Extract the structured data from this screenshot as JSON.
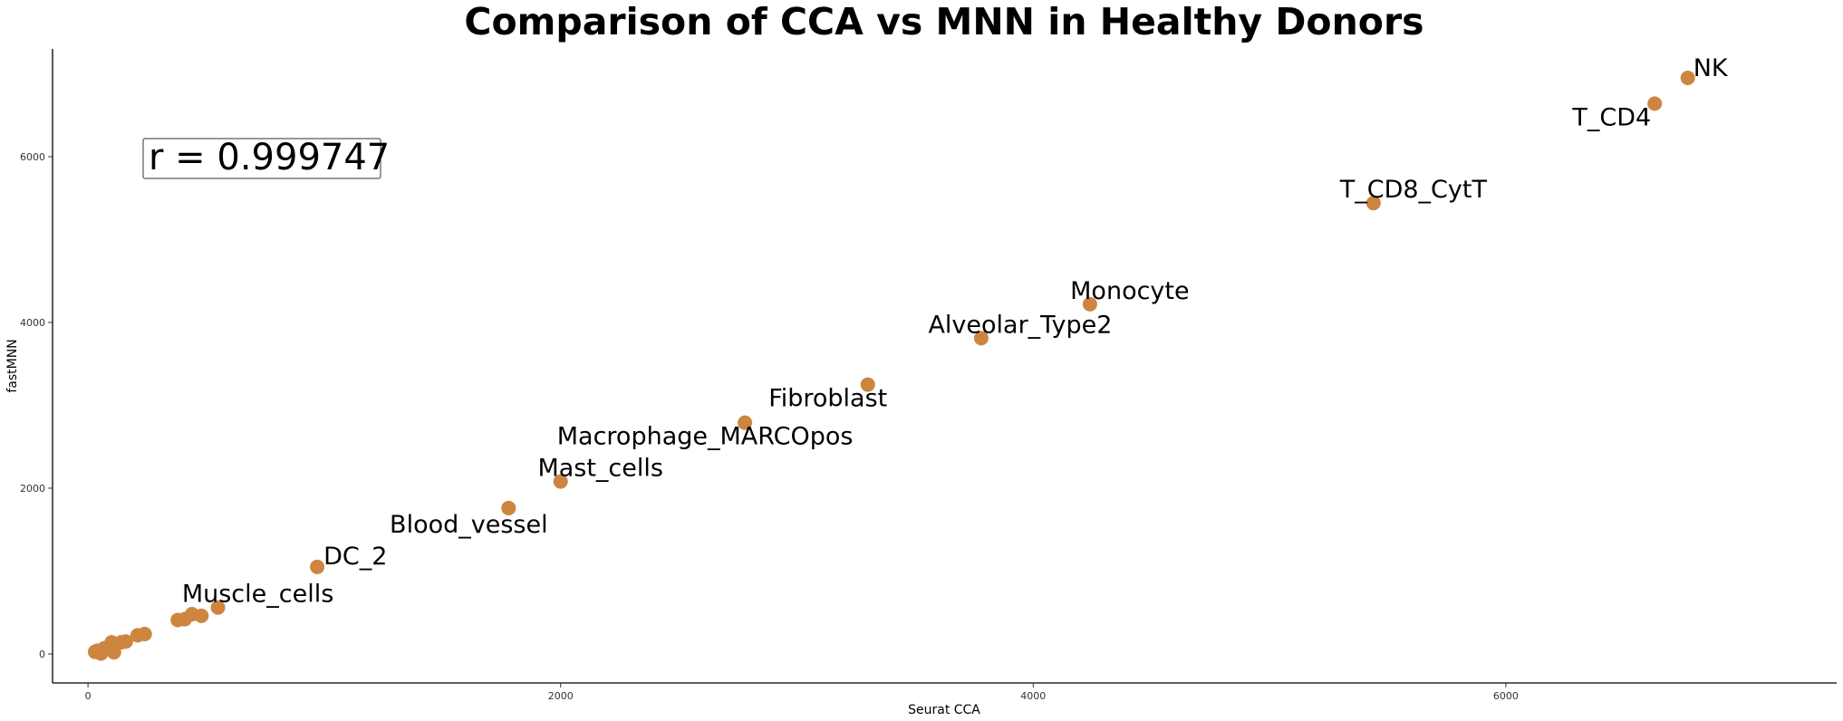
{
  "chart_data": {
    "type": "scatter",
    "title": "Comparison of CCA vs MNN in Healthy Donors",
    "xlabel": "Seurat CCA",
    "ylabel": "fastMNN",
    "xlim": [
      -150,
      7400
    ],
    "ylim": [
      -350,
      7300
    ],
    "xticks": [
      0,
      2000,
      4000,
      6000
    ],
    "yticks": [
      0,
      2000,
      4000,
      6000
    ],
    "grid": false,
    "point_color": "#CD853F",
    "annotation": "r = 0.999747",
    "points": [
      {
        "x": 6770,
        "y": 6950,
        "label": "NK"
      },
      {
        "x": 6630,
        "y": 6640,
        "label": "T_CD4"
      },
      {
        "x": 5440,
        "y": 5440,
        "label": "T_CD8_CytT"
      },
      {
        "x": 4240,
        "y": 4220,
        "label": "Monocyte"
      },
      {
        "x": 3780,
        "y": 3810,
        "label": "Alveolar_Type2"
      },
      {
        "x": 3300,
        "y": 3250,
        "label": "Fibroblast"
      },
      {
        "x": 2780,
        "y": 2790,
        "label": "Macrophage_MARCOpos"
      },
      {
        "x": 2000,
        "y": 2080,
        "label": "Mast_cells"
      },
      {
        "x": 1780,
        "y": 1760,
        "label": "Blood_vessel"
      },
      {
        "x": 970,
        "y": 1050,
        "label": "DC_2"
      },
      {
        "x": 550,
        "y": 560,
        "label": "Muscle_cells"
      },
      {
        "x": 480,
        "y": 460
      },
      {
        "x": 440,
        "y": 480
      },
      {
        "x": 410,
        "y": 420
      },
      {
        "x": 380,
        "y": 410
      },
      {
        "x": 240,
        "y": 240
      },
      {
        "x": 210,
        "y": 225
      },
      {
        "x": 160,
        "y": 150
      },
      {
        "x": 140,
        "y": 140
      },
      {
        "x": 100,
        "y": 140
      },
      {
        "x": 110,
        "y": 20
      },
      {
        "x": 70,
        "y": 70
      },
      {
        "x": 55,
        "y": 5
      },
      {
        "x": 40,
        "y": 40
      },
      {
        "x": 30,
        "y": 25
      }
    ]
  }
}
